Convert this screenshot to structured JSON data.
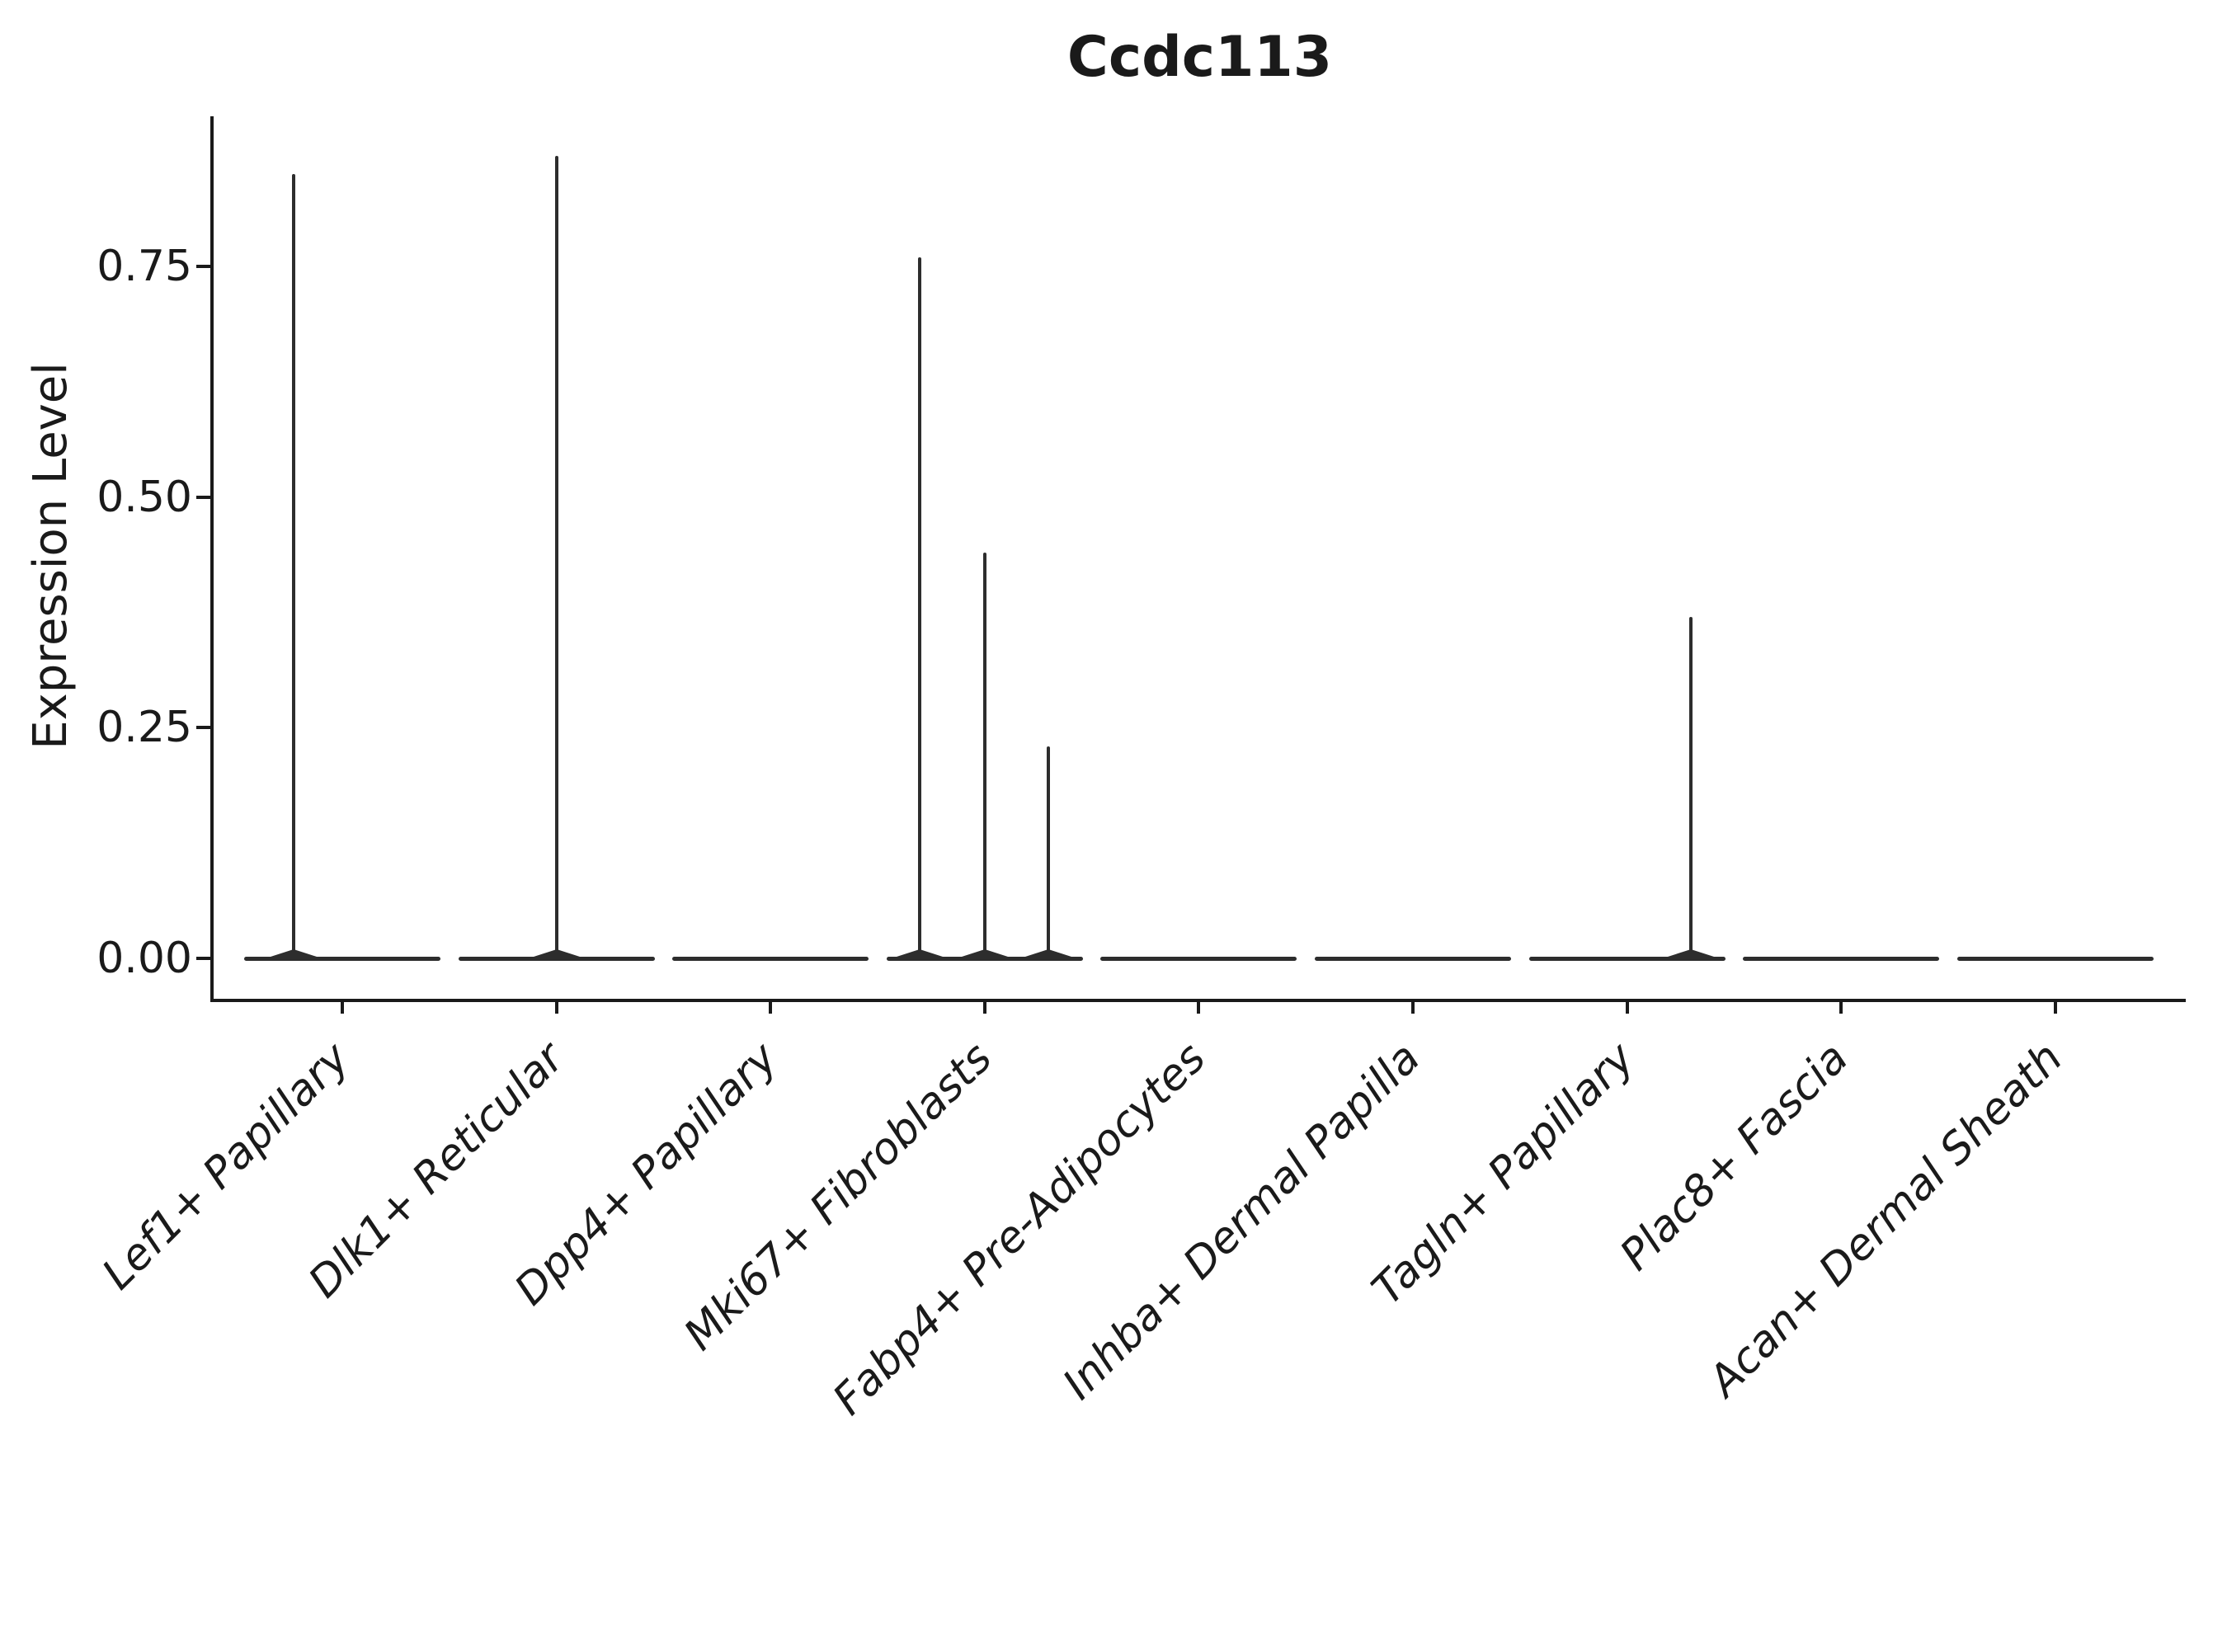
{
  "title": "Ccdc113",
  "chart_data": {
    "type": "violin",
    "title": "Ccdc113",
    "ylabel": "Expression Level",
    "xlabel": "",
    "ylim": [
      -0.044,
      0.913
    ],
    "ytick_values": [
      0.0,
      0.25,
      0.5,
      0.75
    ],
    "ytick_labels": [
      "0.00",
      "0.25",
      "0.50",
      "0.75"
    ],
    "grid": false,
    "legend": "none",
    "violin_color": "#2d2d2d",
    "axis_color": "#1a1a1a",
    "categories": [
      "Lef1+ Papillary",
      "Dlk1+ Reticular",
      "Dpp4+ Papillary",
      "Mki67+ Fibroblasts",
      "Fabp4+ Pre-Adipocytes",
      "Inhba+ Dermal Papilla",
      "Tagln+ Papillary",
      "Plac8+ Fascia",
      "Acan+ Dermal Sheath"
    ],
    "violins": [
      {
        "category": "Lef1+ Papillary",
        "baseline_value": 0,
        "spikes": [
          {
            "offset": -0.5,
            "max": 0.85
          }
        ]
      },
      {
        "category": "Dlk1+ Reticular",
        "baseline_value": 0,
        "spikes": [
          {
            "offset": 0.0,
            "max": 0.87
          }
        ]
      },
      {
        "category": "Dpp4+ Papillary",
        "baseline_value": 0,
        "spikes": []
      },
      {
        "category": "Mki67+ Fibroblasts",
        "baseline_value": 0,
        "spikes": [
          {
            "offset": -0.66,
            "max": 0.76
          },
          {
            "offset": 0.0,
            "max": 0.44
          },
          {
            "offset": 0.65,
            "max": 0.23
          }
        ]
      },
      {
        "category": "Fabp4+ Pre-Adipocytes",
        "baseline_value": 0,
        "spikes": []
      },
      {
        "category": "Inhba+ Dermal Papilla",
        "baseline_value": 0,
        "spikes": []
      },
      {
        "category": "Tagln+ Papillary",
        "baseline_value": 0,
        "spikes": [
          {
            "offset": 0.65,
            "max": 0.37
          }
        ]
      },
      {
        "category": "Plac8+ Fascia",
        "baseline_value": 0,
        "spikes": []
      },
      {
        "category": "Acan+ Dermal Sheath",
        "baseline_value": 0,
        "spikes": []
      }
    ]
  }
}
